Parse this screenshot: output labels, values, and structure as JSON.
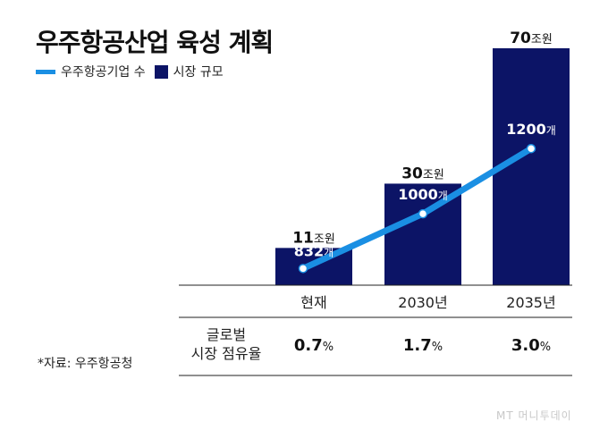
{
  "title": "우주항공산업 육성 계획",
  "legend": [
    {
      "name": "우주항공기업 수",
      "color": "#1a8fe3"
    },
    {
      "name": "시장 규모",
      "color": "#0c1466"
    }
  ],
  "colors": {
    "bar": "#0c1466",
    "line": "#1a8fe3",
    "text": "#111111"
  },
  "chart_data": {
    "type": "bar",
    "categories": [
      "현재",
      "2030년",
      "2035년"
    ],
    "series": [
      {
        "name": "시장 규모",
        "values": [
          11,
          30,
          70
        ],
        "labels": [
          "11",
          "30",
          "70"
        ],
        "unit": "조원"
      },
      {
        "name": "우주항공기업 수",
        "values": [
          832,
          1000,
          1200
        ],
        "labels": [
          "832",
          "1000",
          "1200"
        ],
        "unit": "개"
      }
    ],
    "ylim": [
      0,
      70
    ]
  },
  "share": {
    "label_line1": "글로벌",
    "label_line2": "시장 점유율",
    "values": [
      "0.7",
      "1.7",
      "3.0"
    ],
    "unit": "%"
  },
  "source": "*자료: 우주항공청",
  "watermark": "MT 머니투데이"
}
